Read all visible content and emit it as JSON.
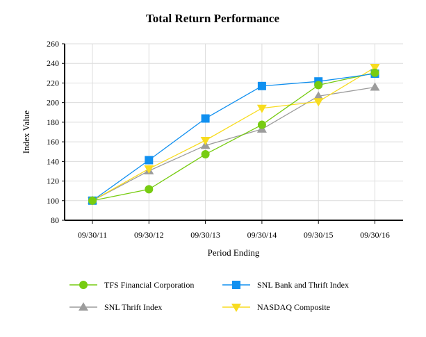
{
  "chart_data": {
    "type": "line",
    "title": "Total Return Performance",
    "xlabel": "Period Ending",
    "ylabel": "Index Value",
    "ylim": [
      80,
      260
    ],
    "yticks": [
      80,
      100,
      120,
      140,
      160,
      180,
      200,
      220,
      240,
      260
    ],
    "categories": [
      "09/30/11",
      "09/30/12",
      "09/30/13",
      "09/30/14",
      "09/30/15",
      "09/30/16"
    ],
    "grid": true,
    "legend_position": "bottom",
    "series": [
      {
        "name": "TFS Financial Corporation",
        "color": "#77cc11",
        "marker": "circle",
        "values": [
          100.0,
          111.6,
          147.3,
          177.4,
          217.8,
          230.4
        ]
      },
      {
        "name": "SNL Bank and Thrift Index",
        "color": "#1090f0",
        "marker": "square",
        "values": [
          100.0,
          141.3,
          183.8,
          216.9,
          221.6,
          229.5
        ]
      },
      {
        "name": "SNL Thrift Index",
        "color": "#9c9c9c",
        "marker": "triangle-up",
        "values": [
          100.0,
          130.4,
          156.3,
          172.9,
          206.6,
          215.7
        ]
      },
      {
        "name": "NASDAQ Composite",
        "color": "#f8dc20",
        "marker": "triangle-down",
        "values": [
          100.0,
          132.5,
          161.5,
          194.3,
          201.0,
          235.9
        ]
      }
    ]
  }
}
